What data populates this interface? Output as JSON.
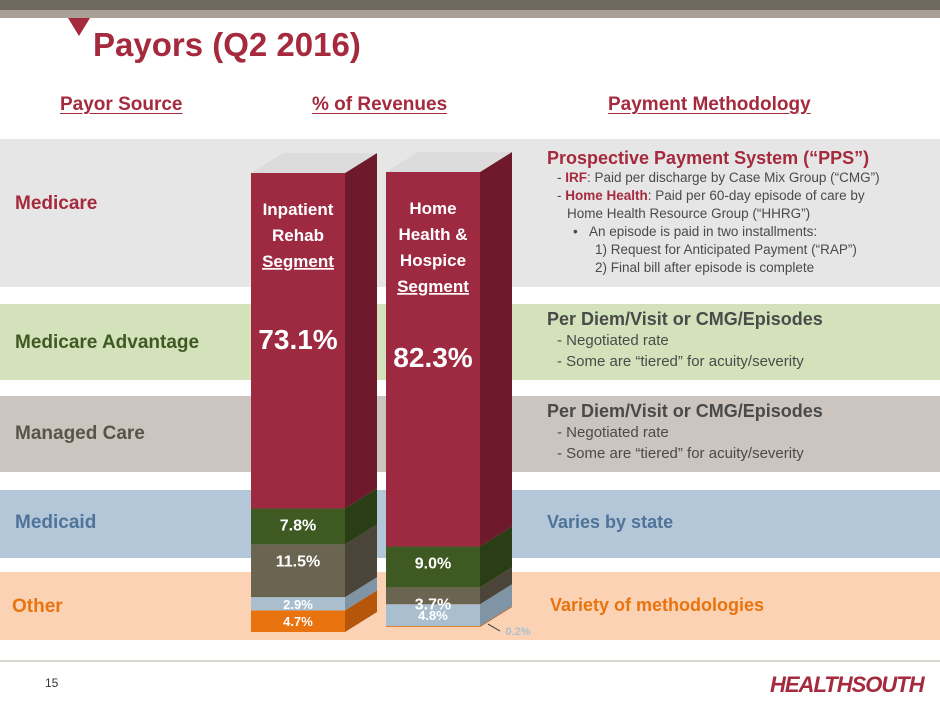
{
  "slide": {
    "title": "Payors (Q2 2016)",
    "page_number": "15",
    "logo_text": "HEALTHSOUTH",
    "headers": {
      "payor_source": "Payor Source",
      "pct_revenues": "% of Revenues",
      "payment_methodology": "Payment Methodology"
    }
  },
  "rows": {
    "medicare": {
      "label": "Medicare",
      "heading": "Prospective Payment System (“PPS”)",
      "line1_bold": "IRF",
      "line1_rest": ": Paid per discharge by Case Mix Group (“CMG”)",
      "line2_bold": "Home Health",
      "line2_rest": ": Paid per 60-day episode of care by",
      "line3": "Home Health Resource Group (“HHRG”)",
      "line4": "An episode is paid in two installments:",
      "line5": "1) Request for Anticipated Payment (“RAP”)",
      "line6": "2) Final bill after episode is complete"
    },
    "medicare_advantage": {
      "label": "Medicare Advantage",
      "heading": "Per Diem/Visit or CMG/Episodes",
      "line1": "Negotiated rate",
      "line2": "Some are “tiered” for acuity/severity"
    },
    "managed_care": {
      "label": "Managed Care",
      "heading": "Per Diem/Visit or CMG/Episodes",
      "line1": "Negotiated rate",
      "line2": "Some are “tiered” for acuity/severity"
    },
    "medicaid": {
      "label": "Medicaid",
      "heading": "Varies by state"
    },
    "other": {
      "label": "Other",
      "heading": "Variety of methodologies"
    }
  },
  "colors": {
    "medicare": "#9e2a42",
    "medicare_advantage": "#3e5a22",
    "managed_care": "#6b6450",
    "medicaid": "#a9bfd0",
    "other": "#e8730f",
    "accent": "#a52a3d"
  },
  "chart_data": {
    "type": "bar",
    "stacked": true,
    "categories": [
      "Inpatient Rehab Segment",
      "Home Health & Hospice Segment"
    ],
    "series": [
      {
        "name": "Medicare",
        "values": [
          73.1,
          82.3
        ]
      },
      {
        "name": "Medicare Advantage",
        "values": [
          7.8,
          9.0
        ]
      },
      {
        "name": "Managed Care",
        "values": [
          11.5,
          3.7
        ]
      },
      {
        "name": "Medicaid",
        "values": [
          2.9,
          4.8
        ]
      },
      {
        "name": "Other",
        "values": [
          4.7,
          0.2
        ]
      }
    ],
    "bar_labels": [
      [
        "Inpatient",
        "Rehab",
        "Segment"
      ],
      [
        "Home",
        "Health &",
        "Hospice",
        "Segment"
      ]
    ],
    "value_labels": [
      [
        "73.1%",
        "7.8%",
        "11.5%",
        "2.9%",
        "4.7%"
      ],
      [
        "82.3%",
        "9.0%",
        "3.7%",
        "4.8%",
        "0.2%"
      ]
    ],
    "ylim": [
      0,
      100
    ]
  }
}
